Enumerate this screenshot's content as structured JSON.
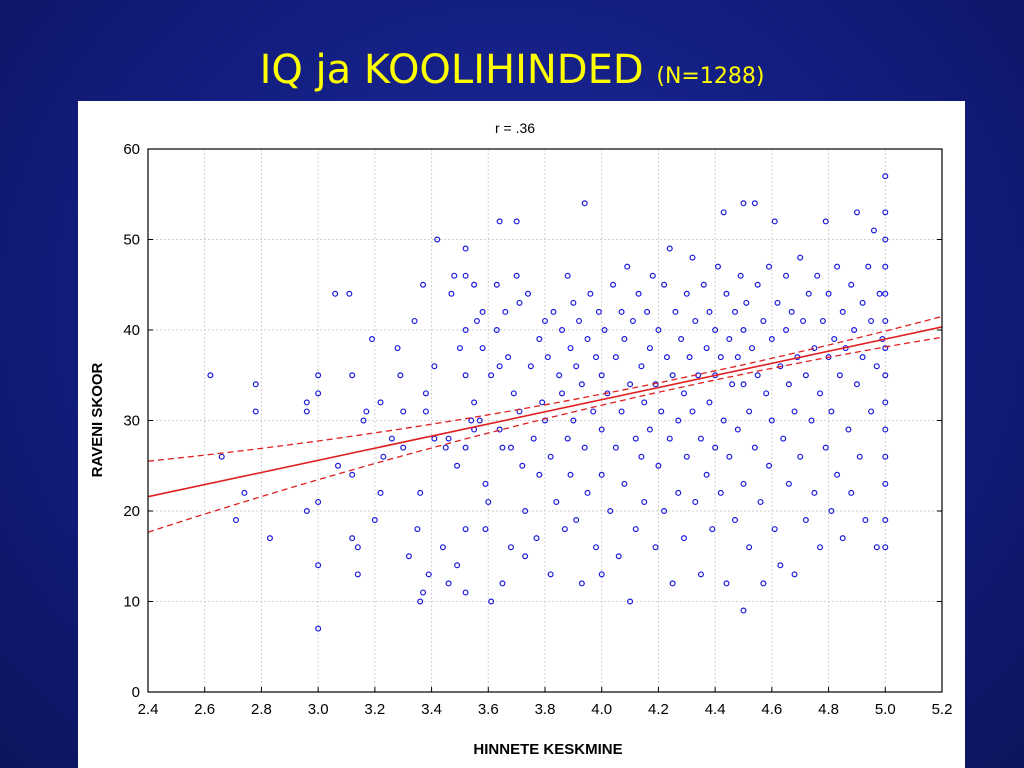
{
  "slide": {
    "title": "IQ ja KOOLIHINDED",
    "subtitle": "(N=1288)"
  },
  "colors": {
    "background": "#131d7e",
    "title": "#ffff00",
    "points": "#1a1adf",
    "regression": "#e02020"
  },
  "chart_data": {
    "type": "scatter",
    "title": "IQ ja KOOLIHINDED (N=1288)",
    "annotation": "r = .36",
    "xlabel": "HINNETE KESKMINE",
    "ylabel": "RAVENI SKOOR",
    "xlim": [
      2.4,
      5.2
    ],
    "ylim": [
      0,
      60
    ],
    "xticks": [
      "2.4",
      "2.6",
      "2.8",
      "3.0",
      "3.2",
      "3.4",
      "3.6",
      "3.8",
      "4.0",
      "4.2",
      "4.4",
      "4.6",
      "4.8",
      "5.0",
      "5.2"
    ],
    "yticks": [
      "0",
      "10",
      "20",
      "30",
      "40",
      "50",
      "60"
    ],
    "grid": true,
    "regression": {
      "slope": 6.7,
      "intercept": 5.5,
      "confidence_band": true
    },
    "points": [
      [
        2.62,
        35
      ],
      [
        2.66,
        26
      ],
      [
        2.71,
        19
      ],
      [
        2.74,
        22
      ],
      [
        2.78,
        34
      ],
      [
        2.78,
        31
      ],
      [
        2.83,
        17
      ],
      [
        2.96,
        32
      ],
      [
        2.96,
        31
      ],
      [
        2.96,
        20
      ],
      [
        3.0,
        35
      ],
      [
        3.0,
        33
      ],
      [
        3.0,
        21
      ],
      [
        3.0,
        14
      ],
      [
        3.0,
        7
      ],
      [
        3.06,
        44
      ],
      [
        3.07,
        25
      ],
      [
        3.11,
        44
      ],
      [
        3.12,
        35
      ],
      [
        3.12,
        24
      ],
      [
        3.12,
        17
      ],
      [
        3.14,
        16
      ],
      [
        3.14,
        13
      ],
      [
        3.16,
        30
      ],
      [
        3.17,
        31
      ],
      [
        3.19,
        39
      ],
      [
        3.2,
        19
      ],
      [
        3.22,
        32
      ],
      [
        3.22,
        22
      ],
      [
        3.23,
        26
      ],
      [
        3.26,
        28
      ],
      [
        3.28,
        38
      ],
      [
        3.29,
        35
      ],
      [
        3.3,
        31
      ],
      [
        3.3,
        27
      ],
      [
        3.32,
        15
      ],
      [
        3.34,
        41
      ],
      [
        3.35,
        18
      ],
      [
        3.36,
        22
      ],
      [
        3.36,
        10
      ],
      [
        3.37,
        11
      ],
      [
        3.37,
        45
      ],
      [
        3.38,
        33
      ],
      [
        3.38,
        31
      ],
      [
        3.39,
        13
      ],
      [
        3.41,
        36
      ],
      [
        3.41,
        28
      ],
      [
        3.42,
        50
      ],
      [
        3.44,
        16
      ],
      [
        3.45,
        27
      ],
      [
        3.46,
        28
      ],
      [
        3.46,
        12
      ],
      [
        3.47,
        44
      ],
      [
        3.48,
        46
      ],
      [
        3.49,
        25
      ],
      [
        3.49,
        14
      ],
      [
        3.5,
        38
      ],
      [
        3.52,
        49
      ],
      [
        3.52,
        46
      ],
      [
        3.52,
        40
      ],
      [
        3.52,
        35
      ],
      [
        3.52,
        27
      ],
      [
        3.52,
        18
      ],
      [
        3.52,
        11
      ],
      [
        3.54,
        30
      ],
      [
        3.55,
        45
      ],
      [
        3.55,
        32
      ],
      [
        3.55,
        29
      ],
      [
        3.56,
        41
      ],
      [
        3.57,
        30
      ],
      [
        3.58,
        42
      ],
      [
        3.58,
        38
      ],
      [
        3.59,
        23
      ],
      [
        3.59,
        18
      ],
      [
        3.6,
        21
      ],
      [
        3.61,
        10
      ],
      [
        3.61,
        35
      ],
      [
        3.63,
        45
      ],
      [
        3.63,
        40
      ],
      [
        3.64,
        52
      ],
      [
        3.64,
        36
      ],
      [
        3.64,
        29
      ],
      [
        3.65,
        27
      ],
      [
        3.65,
        12
      ],
      [
        3.66,
        42
      ],
      [
        3.67,
        37
      ],
      [
        3.68,
        27
      ],
      [
        3.68,
        16
      ],
      [
        3.69,
        33
      ],
      [
        3.7,
        52
      ],
      [
        3.7,
        46
      ],
      [
        3.71,
        43
      ],
      [
        3.71,
        31
      ],
      [
        3.72,
        25
      ],
      [
        3.73,
        20
      ],
      [
        3.73,
        15
      ],
      [
        3.74,
        44
      ],
      [
        3.75,
        36
      ],
      [
        3.76,
        28
      ],
      [
        3.77,
        17
      ],
      [
        3.78,
        39
      ],
      [
        3.78,
        24
      ],
      [
        3.79,
        32
      ],
      [
        3.8,
        41
      ],
      [
        3.8,
        30
      ],
      [
        3.81,
        37
      ],
      [
        3.82,
        26
      ],
      [
        3.82,
        13
      ],
      [
        3.83,
        42
      ],
      [
        3.84,
        21
      ],
      [
        3.85,
        35
      ],
      [
        3.86,
        40
      ],
      [
        3.86,
        33
      ],
      [
        3.87,
        18
      ],
      [
        3.88,
        46
      ],
      [
        3.88,
        28
      ],
      [
        3.89,
        38
      ],
      [
        3.89,
        24
      ],
      [
        3.9,
        43
      ],
      [
        3.9,
        30
      ],
      [
        3.91,
        36
      ],
      [
        3.91,
        19
      ],
      [
        3.92,
        41
      ],
      [
        3.93,
        34
      ],
      [
        3.93,
        12
      ],
      [
        3.94,
        54
      ],
      [
        3.94,
        27
      ],
      [
        3.95,
        39
      ],
      [
        3.95,
        22
      ],
      [
        3.96,
        44
      ],
      [
        3.97,
        31
      ],
      [
        3.98,
        37
      ],
      [
        3.98,
        16
      ],
      [
        3.99,
        42
      ],
      [
        4.0,
        35
      ],
      [
        4.0,
        29
      ],
      [
        4.0,
        24
      ],
      [
        4.0,
        13
      ],
      [
        4.01,
        40
      ],
      [
        4.02,
        33
      ],
      [
        4.03,
        20
      ],
      [
        4.04,
        45
      ],
      [
        4.05,
        37
      ],
      [
        4.05,
        27
      ],
      [
        4.06,
        15
      ],
      [
        4.07,
        42
      ],
      [
        4.07,
        31
      ],
      [
        4.08,
        39
      ],
      [
        4.08,
        23
      ],
      [
        4.09,
        47
      ],
      [
        4.1,
        34
      ],
      [
        4.1,
        10
      ],
      [
        4.11,
        41
      ],
      [
        4.12,
        28
      ],
      [
        4.12,
        18
      ],
      [
        4.13,
        44
      ],
      [
        4.14,
        36
      ],
      [
        4.14,
        26
      ],
      [
        4.15,
        32
      ],
      [
        4.15,
        21
      ],
      [
        4.16,
        42
      ],
      [
        4.17,
        38
      ],
      [
        4.17,
        29
      ],
      [
        4.18,
        46
      ],
      [
        4.19,
        34
      ],
      [
        4.19,
        16
      ],
      [
        4.2,
        40
      ],
      [
        4.2,
        25
      ],
      [
        4.21,
        31
      ],
      [
        4.22,
        45
      ],
      [
        4.22,
        20
      ],
      [
        4.23,
        37
      ],
      [
        4.24,
        49
      ],
      [
        4.24,
        28
      ],
      [
        4.25,
        35
      ],
      [
        4.25,
        12
      ],
      [
        4.26,
        42
      ],
      [
        4.27,
        30
      ],
      [
        4.27,
        22
      ],
      [
        4.28,
        39
      ],
      [
        4.29,
        33
      ],
      [
        4.29,
        17
      ],
      [
        4.3,
        44
      ],
      [
        4.3,
        26
      ],
      [
        4.31,
        37
      ],
      [
        4.32,
        48
      ],
      [
        4.32,
        31
      ],
      [
        4.33,
        41
      ],
      [
        4.33,
        21
      ],
      [
        4.34,
        35
      ],
      [
        4.35,
        28
      ],
      [
        4.35,
        13
      ],
      [
        4.36,
        45
      ],
      [
        4.37,
        38
      ],
      [
        4.37,
        24
      ],
      [
        4.38,
        42
      ],
      [
        4.38,
        32
      ],
      [
        4.39,
        18
      ],
      [
        4.4,
        40
      ],
      [
        4.4,
        35
      ],
      [
        4.4,
        27
      ],
      [
        4.41,
        47
      ],
      [
        4.42,
        37
      ],
      [
        4.42,
        22
      ],
      [
        4.43,
        53
      ],
      [
        4.43,
        30
      ],
      [
        4.44,
        44
      ],
      [
        4.44,
        12
      ],
      [
        4.45,
        39
      ],
      [
        4.45,
        26
      ],
      [
        4.46,
        34
      ],
      [
        4.47,
        42
      ],
      [
        4.47,
        19
      ],
      [
        4.48,
        37
      ],
      [
        4.48,
        29
      ],
      [
        4.49,
        46
      ],
      [
        4.5,
        54
      ],
      [
        4.5,
        40
      ],
      [
        4.5,
        34
      ],
      [
        4.5,
        23
      ],
      [
        4.5,
        9
      ],
      [
        4.51,
        43
      ],
      [
        4.52,
        31
      ],
      [
        4.52,
        16
      ],
      [
        4.53,
        38
      ],
      [
        4.54,
        54
      ],
      [
        4.54,
        27
      ],
      [
        4.55,
        45
      ],
      [
        4.55,
        35
      ],
      [
        4.56,
        21
      ],
      [
        4.57,
        41
      ],
      [
        4.57,
        12
      ],
      [
        4.58,
        33
      ],
      [
        4.59,
        47
      ],
      [
        4.59,
        25
      ],
      [
        4.6,
        39
      ],
      [
        4.6,
        30
      ],
      [
        4.61,
        52
      ],
      [
        4.61,
        18
      ],
      [
        4.62,
        43
      ],
      [
        4.63,
        36
      ],
      [
        4.63,
        14
      ],
      [
        4.64,
        28
      ],
      [
        4.65,
        46
      ],
      [
        4.65,
        40
      ],
      [
        4.66,
        34
      ],
      [
        4.66,
        23
      ],
      [
        4.67,
        42
      ],
      [
        4.68,
        31
      ],
      [
        4.68,
        13
      ],
      [
        4.69,
        37
      ],
      [
        4.7,
        48
      ],
      [
        4.7,
        26
      ],
      [
        4.71,
        41
      ],
      [
        4.72,
        35
      ],
      [
        4.72,
        19
      ],
      [
        4.73,
        44
      ],
      [
        4.74,
        30
      ],
      [
        4.75,
        38
      ],
      [
        4.75,
        22
      ],
      [
        4.76,
        46
      ],
      [
        4.77,
        33
      ],
      [
        4.77,
        16
      ],
      [
        4.78,
        41
      ],
      [
        4.79,
        52
      ],
      [
        4.79,
        27
      ],
      [
        4.8,
        37
      ],
      [
        4.8,
        44
      ],
      [
        4.81,
        31
      ],
      [
        4.81,
        20
      ],
      [
        4.82,
        39
      ],
      [
        4.83,
        47
      ],
      [
        4.83,
        24
      ],
      [
        4.84,
        35
      ],
      [
        4.85,
        42
      ],
      [
        4.85,
        17
      ],
      [
        4.86,
        38
      ],
      [
        4.87,
        29
      ],
      [
        4.88,
        45
      ],
      [
        4.88,
        22
      ],
      [
        4.89,
        40
      ],
      [
        4.9,
        53
      ],
      [
        4.9,
        34
      ],
      [
        4.91,
        26
      ],
      [
        4.92,
        43
      ],
      [
        4.92,
        37
      ],
      [
        4.93,
        19
      ],
      [
        4.94,
        47
      ],
      [
        4.95,
        41
      ],
      [
        4.95,
        31
      ],
      [
        4.96,
        51
      ],
      [
        4.97,
        36
      ],
      [
        4.97,
        16
      ],
      [
        4.98,
        44
      ],
      [
        4.99,
        39
      ],
      [
        5.0,
        57
      ],
      [
        5.0,
        53
      ],
      [
        5.0,
        50
      ],
      [
        5.0,
        47
      ],
      [
        5.0,
        44
      ],
      [
        5.0,
        41
      ],
      [
        5.0,
        38
      ],
      [
        5.0,
        35
      ],
      [
        5.0,
        32
      ],
      [
        5.0,
        29
      ],
      [
        5.0,
        26
      ],
      [
        5.0,
        23
      ],
      [
        5.0,
        19
      ],
      [
        5.0,
        16
      ]
    ]
  }
}
